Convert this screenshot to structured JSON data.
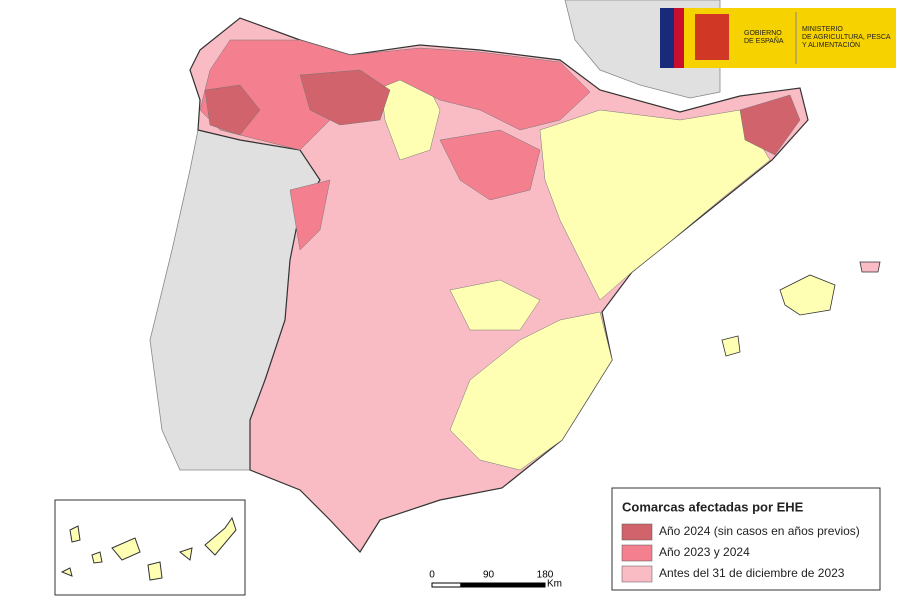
{
  "logo": {
    "government": [
      "GOBIERNO",
      "DE ESPAÑA"
    ],
    "ministry": [
      "MINISTERIO",
      "DE AGRICULTURA, PESCA",
      "Y ALIMENTACIÓN"
    ]
  },
  "legend": {
    "title": "Comarcas afectadas por EHE",
    "items": [
      {
        "label": "Año 2024 (sin casos en años previos)",
        "color": "#d0636b"
      },
      {
        "label": "Año 2023 y 2024",
        "color": "#f4808f"
      },
      {
        "label": "Antes del 31 de diciembre de 2023",
        "color": "#f9bcc4"
      }
    ]
  },
  "scale": {
    "ticks": [
      0,
      90,
      180
    ],
    "unit": "Km"
  }
}
